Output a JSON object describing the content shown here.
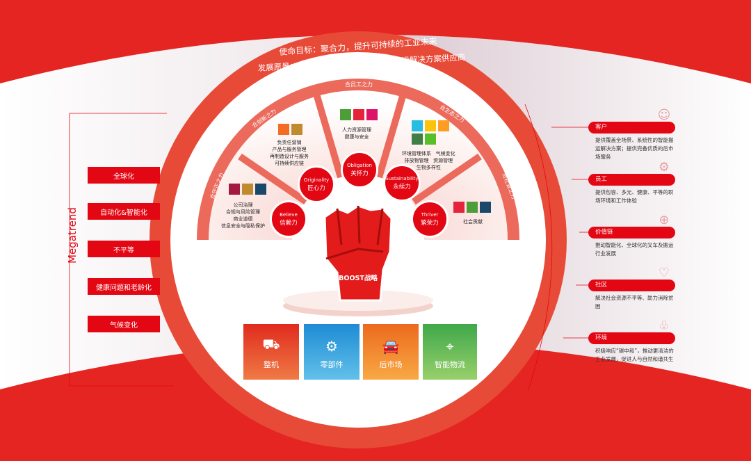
{
  "mission": "使命目标：聚合力，提升可持续的工业未来",
  "vision": "发展愿景：成为具有全球影响力的物料搬运解决方案供应商",
  "megatrend": {
    "label": "Megatrend",
    "items": [
      "全球化",
      "自动化&智能化",
      "不平等",
      "健康问题和老龄化",
      "气候变化"
    ]
  },
  "powers": [
    "合守正之力",
    "合创新之力",
    "合员工之力",
    "合生态之力",
    "合社会之力"
  ],
  "pillars": [
    {
      "en": "Believe",
      "cn": "信赖力",
      "desc": "公司治理\n合规与风险管理\n商业道德\n信息安全与隐私保护",
      "sdg": [
        "#a21942",
        "#bf8b2e",
        "#19486a"
      ]
    },
    {
      "en": "Originality",
      "cn": "匠心力",
      "desc": "负责任营销\n产品与服务管理\n再制造设计与服务\n可持续供应链",
      "sdg": [
        "#f36d25",
        "#bf8b2e"
      ]
    },
    {
      "en": "Obligation",
      "cn": "关怀力",
      "desc": "人力资源管理\n健康与安全",
      "sdg": [
        "#4c9f38",
        "#e5243b",
        "#dd1367"
      ]
    },
    {
      "en": "Sustainability",
      "cn": "永续力",
      "desc": "环境管理体系   气候变化\n排放物管理   资源管理\n生物多样性",
      "sdg": [
        "#26bde2",
        "#fcc30b",
        "#fd9d24",
        "#3f7e44",
        "#56c02b"
      ]
    },
    {
      "en": "Thriver",
      "cn": "繁荣力",
      "desc": "社会贡献",
      "sdg": [
        "#e5243b",
        "#4c9f38",
        "#19486a"
      ]
    }
  ],
  "center": {
    "label": "BOOST战略"
  },
  "business": [
    {
      "label": "整机",
      "icon": "forklift-icon",
      "color": "#e84a2e"
    },
    {
      "label": "零部件",
      "icon": "gear-icon",
      "color": "#3ea3dc"
    },
    {
      "label": "后市场",
      "icon": "service-car-icon",
      "color": "#f08a1c"
    },
    {
      "label": "智能物流",
      "icon": "logistics-icon",
      "color": "#6cba4a"
    }
  ],
  "stakeholders": [
    {
      "title": "客户",
      "desc": "提供覆盖全场景、系统性的智能搬运解决方案；提供完备优质的后市场服务",
      "icon": "customer-icon"
    },
    {
      "title": "员工",
      "desc": "提供包容、多元、健康、平等的职场环境和工作体验",
      "icon": "employee-icon"
    },
    {
      "title": "价值链",
      "desc": "推动智能化、全球化的叉车及搬运行业发展",
      "icon": "globe-gear-icon"
    },
    {
      "title": "社区",
      "desc": "解决社会资源不平等、助力消除贫困",
      "icon": "heart-hands-icon"
    },
    {
      "title": "环境",
      "desc": "积极响应“碳中和”，推动更清洁的工业发展，促进人与自然和谐共生",
      "icon": "tree-icon"
    }
  ],
  "colors": {
    "brand": "#e30613"
  }
}
